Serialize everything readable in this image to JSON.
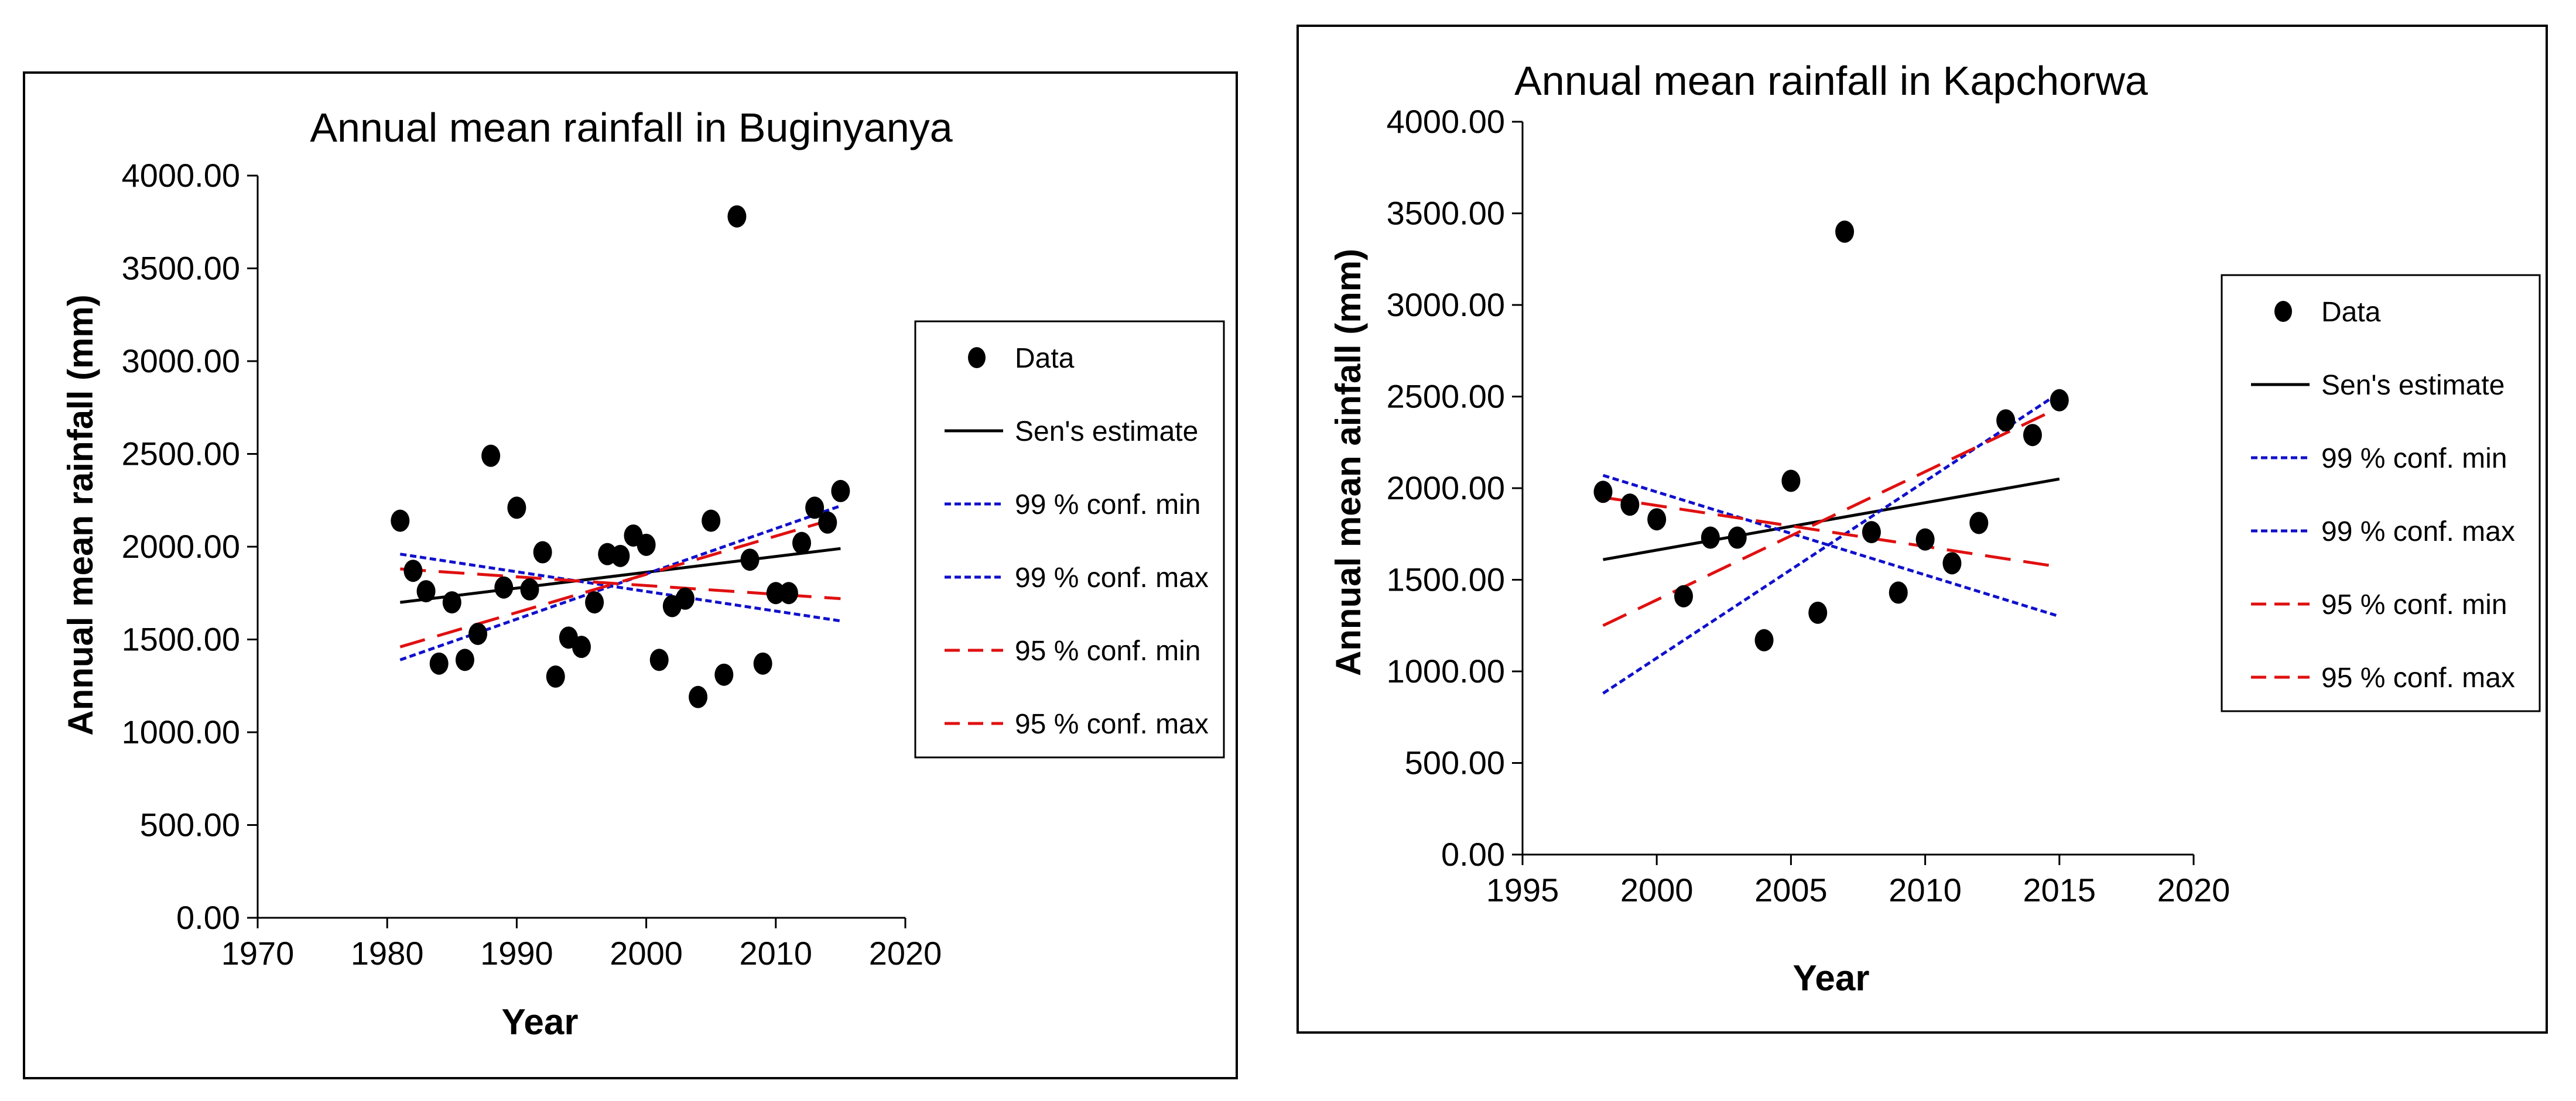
{
  "chart_data": [
    {
      "type": "scatter",
      "title": "Annual mean rainfall in Buginyanya",
      "xlabel": "Year",
      "ylabel": "Annual mean rainfall (mm)",
      "xlim": [
        1970,
        2020
      ],
      "ylim": [
        0,
        4000
      ],
      "xticks": [
        "1970",
        "1980",
        "1990",
        "2000",
        "2010",
        "2020"
      ],
      "yticks": [
        "0.00",
        "500.00",
        "1000.00",
        "1500.00",
        "2000.00",
        "2500.00",
        "3000.00",
        "3500.00",
        "4000.00"
      ],
      "grid": false,
      "legend_placement": "right",
      "legend": [
        "Data",
        "Sen's estimate",
        "99 % conf. min",
        "99 % conf. max",
        "95 % conf. min",
        "95 % conf. max"
      ],
      "points": [
        [
          1981,
          2140
        ],
        [
          1982,
          1870
        ],
        [
          1983,
          1760
        ],
        [
          1984,
          1370
        ],
        [
          1985,
          1700
        ],
        [
          1986,
          1390
        ],
        [
          1987,
          1530
        ],
        [
          1988,
          2490
        ],
        [
          1989,
          1780
        ],
        [
          1990,
          2210
        ],
        [
          1991,
          1770
        ],
        [
          1992,
          1970
        ],
        [
          1993,
          1300
        ],
        [
          1994,
          1510
        ],
        [
          1995,
          1460
        ],
        [
          1996,
          1700
        ],
        [
          1997,
          1960
        ],
        [
          1998,
          1950
        ],
        [
          1999,
          2060
        ],
        [
          2000,
          2010
        ],
        [
          2001,
          1390
        ],
        [
          2002,
          1680
        ],
        [
          2003,
          1720
        ],
        [
          2004,
          1190
        ],
        [
          2005,
          2140
        ],
        [
          2006,
          1310
        ],
        [
          2007,
          3780
        ],
        [
          2008,
          1930
        ],
        [
          2009,
          1370
        ],
        [
          2010,
          1750
        ],
        [
          2011,
          1750
        ],
        [
          2012,
          2020
        ],
        [
          2013,
          2210
        ],
        [
          2014,
          2130
        ],
        [
          2015,
          2300
        ]
      ],
      "series": [
        {
          "name": "Sen's estimate",
          "color": "#000000",
          "style": "solid",
          "x": [
            1981,
            2015
          ],
          "y": [
            1700,
            1990
          ]
        },
        {
          "name": "99 % conf. min",
          "color": "#1010cc",
          "style": "dotted",
          "x": [
            1981,
            2015
          ],
          "y": [
            1960,
            1600
          ]
        },
        {
          "name": "99 % conf. max",
          "color": "#1010cc",
          "style": "dotted",
          "x": [
            1981,
            2015
          ],
          "y": [
            1390,
            2220
          ]
        },
        {
          "name": "95 % conf. min",
          "color": "#e01010",
          "style": "dashed",
          "x": [
            1981,
            2015
          ],
          "y": [
            1880,
            1720
          ]
        },
        {
          "name": "95 % conf. max",
          "color": "#e01010",
          "style": "dashed",
          "x": [
            1981,
            2015
          ],
          "y": [
            1460,
            2160
          ]
        }
      ]
    },
    {
      "type": "scatter",
      "title": "Annual mean rainfall in Kapchorwa",
      "xlabel": "Year",
      "ylabel": "Annual mean ainfall (mm)",
      "xlim": [
        1995,
        2020
      ],
      "ylim": [
        0,
        4000
      ],
      "xticks": [
        "1995",
        "2000",
        "2005",
        "2010",
        "2015",
        "2020"
      ],
      "yticks": [
        "0.00",
        "500.00",
        "1000.00",
        "1500.00",
        "2000.00",
        "2500.00",
        "3000.00",
        "3500.00",
        "4000.00"
      ],
      "grid": false,
      "legend_placement": "right",
      "legend": [
        "Data",
        "Sen's estimate",
        "99 % conf. min",
        "99 % conf. max",
        "95 % conf. min",
        "95 % conf. max"
      ],
      "points": [
        [
          1998,
          1980
        ],
        [
          1999,
          1910
        ],
        [
          2000,
          1830
        ],
        [
          2001,
          1410
        ],
        [
          2002,
          1730
        ],
        [
          2003,
          1730
        ],
        [
          2004,
          1170
        ],
        [
          2005,
          2040
        ],
        [
          2006,
          1320
        ],
        [
          2007,
          3400
        ],
        [
          2008,
          1760
        ],
        [
          2009,
          1430
        ],
        [
          2010,
          1720
        ],
        [
          2011,
          1590
        ],
        [
          2012,
          1810
        ],
        [
          2013,
          2370
        ],
        [
          2014,
          2290
        ],
        [
          2015,
          2480
        ]
      ],
      "series": [
        {
          "name": "Sen's estimate",
          "color": "#000000",
          "style": "solid",
          "x": [
            1998,
            2015
          ],
          "y": [
            1610,
            2050
          ]
        },
        {
          "name": "99 % conf. min",
          "color": "#1010cc",
          "style": "dotted",
          "x": [
            1998,
            2015
          ],
          "y": [
            2070,
            1300
          ]
        },
        {
          "name": "99 % conf. max",
          "color": "#1010cc",
          "style": "dotted",
          "x": [
            1998,
            2015
          ],
          "y": [
            880,
            2520
          ]
        },
        {
          "name": "95 % conf. min",
          "color": "#e01010",
          "style": "dashed",
          "x": [
            1998,
            2015
          ],
          "y": [
            1950,
            1570
          ]
        },
        {
          "name": "95 % conf. max",
          "color": "#e01010",
          "style": "dashed",
          "x": [
            1998,
            2015
          ],
          "y": [
            1250,
            2440
          ]
        }
      ]
    }
  ]
}
